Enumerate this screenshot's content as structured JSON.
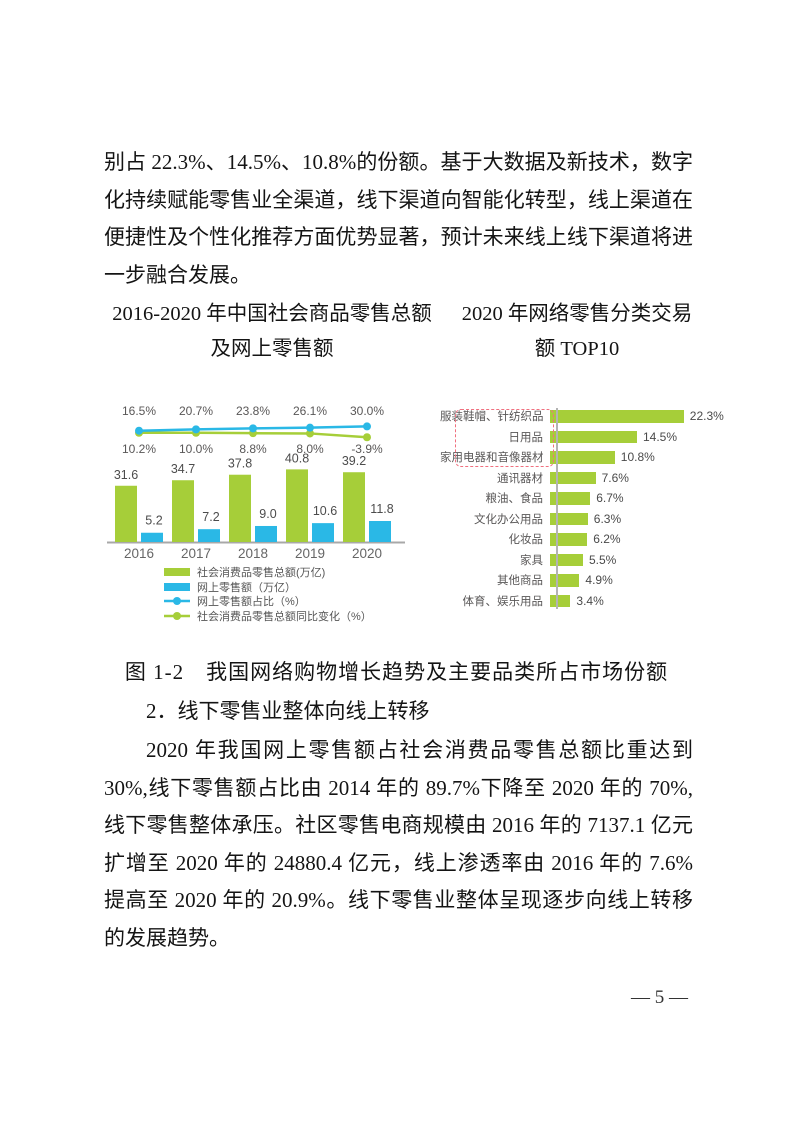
{
  "page": {
    "paragraph1": "别占 22.3%、14.5%、10.8%的份额。基于大数据及新技术，数字化持续赋能零售业全渠道，线下渠道向智能化转型，线上渠道在便捷性及个性化推荐方面优势显著，预计未来线上线下渠道将进一步融合发展。",
    "figure_caption": "图 1-2　我国网络购物增长趋势及主要品类所占市场份额",
    "section_heading": "2．线下零售业整体向线上转移",
    "paragraph2": "2020 年我国网上零售额占社会消费品零售总额比重达到 30%,线下零售额占比由 2014 年的 89.7%下降至 2020 年的 70%,线下零售整体承压。社区零售电商规模由 2016 年的 7137.1 亿元扩增至 2020 年的 24880.4 亿元，线上渗透率由 2016 年的 7.6%提高至 2020 年的 20.9%。线下零售业整体呈现逐步向线上转移的发展趋势。",
    "page_number": "— 5 —"
  },
  "colors": {
    "green": "#a6ce39",
    "blue": "#2ab8e6",
    "highlight_dashed": "#f0707f",
    "axis": "#a8a8a8",
    "chart_text": "#595757"
  },
  "chart_data": [
    {
      "type": "bar",
      "subtype": "grouped-bars-with-lines",
      "title_lines": [
        "2016-2020 年中国社会商品零售总额",
        "及网上零售额"
      ],
      "categories": [
        "2016",
        "2017",
        "2018",
        "2019",
        "2020"
      ],
      "series": [
        {
          "name": "社会消费品零售总额(万亿)",
          "kind": "bar",
          "color": "#a6ce39",
          "values": [
            31.6,
            34.7,
            37.8,
            40.8,
            39.2
          ],
          "labels": [
            "31.6",
            "34.7",
            "37.8",
            "40.8",
            "39.2"
          ]
        },
        {
          "name": "网上零售额（万亿）",
          "kind": "bar",
          "color": "#2ab8e6",
          "values": [
            5.2,
            7.2,
            9.0,
            10.6,
            11.8
          ],
          "labels": [
            "5.2",
            "7.2",
            "9.0",
            "10.6",
            "11.8"
          ]
        },
        {
          "name": "网上零售额占比（%）",
          "kind": "line",
          "color": "#2ab8e6",
          "values": [
            16.5,
            20.7,
            23.8,
            26.1,
            30.0
          ],
          "labels": [
            "16.5%",
            "20.7%",
            "23.8%",
            "26.1%",
            "30.0%"
          ]
        },
        {
          "name": "社会消费品零售总额同比变化（%）",
          "kind": "line",
          "color": "#a6ce39",
          "values": [
            10.2,
            10.0,
            8.8,
            8.0,
            -3.9
          ],
          "labels": [
            "10.2%",
            "10.0%",
            "8.8%",
            "8.0%",
            "-3.9%"
          ]
        }
      ],
      "legend_position": "bottom",
      "grid": false
    },
    {
      "type": "bar",
      "orientation": "horizontal",
      "title_lines": [
        "2020 年网络零售分类交易",
        "额 TOP10"
      ],
      "categories": [
        "服装鞋帽、针纺织品",
        "日用品",
        "家用电器和音像器材",
        "通讯器材",
        "粮油、食品",
        "文化办公用品",
        "化妆品",
        "家具",
        "其他商品",
        "体育、娱乐用品"
      ],
      "values": [
        22.3,
        14.5,
        10.8,
        7.6,
        6.7,
        6.3,
        6.2,
        5.5,
        4.9,
        3.4
      ],
      "labels": [
        "22.3%",
        "14.5%",
        "10.8%",
        "7.6%",
        "6.7%",
        "6.3%",
        "6.2%",
        "5.5%",
        "4.9%",
        "3.4%"
      ],
      "bar_color": "#a6ce39",
      "highlighted_rows": [
        0,
        1,
        2
      ],
      "xlim": [
        0,
        24
      ],
      "grid": false
    }
  ]
}
